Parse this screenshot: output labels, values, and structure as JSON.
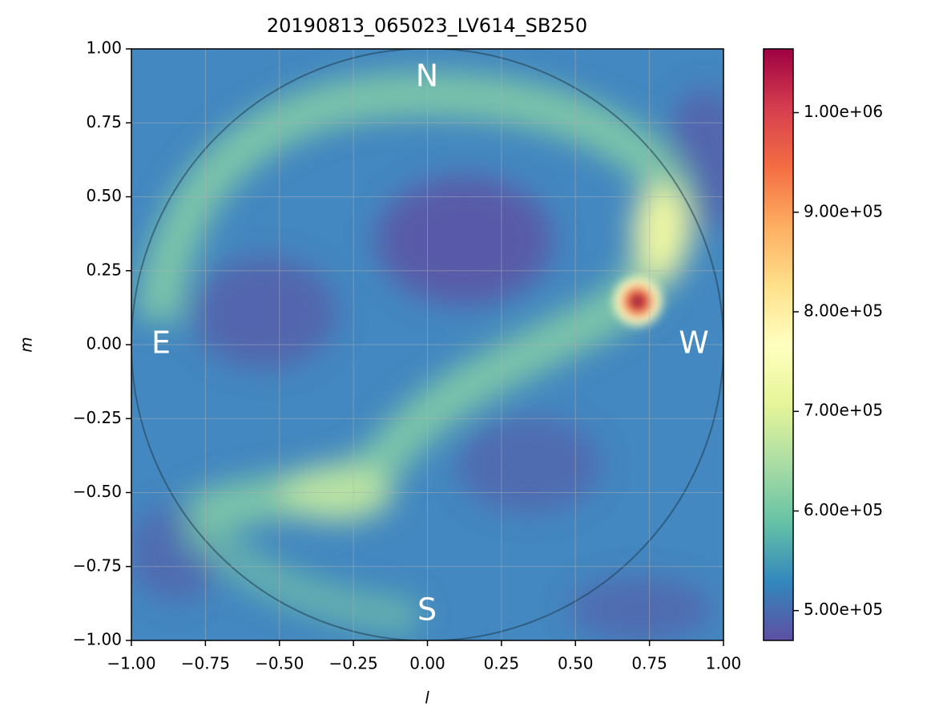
{
  "chart_data": {
    "type": "heatmap",
    "title": "20190813_065023_LV614_SB250",
    "x_label": "l",
    "y_label": "m",
    "xlim": [
      -1,
      1
    ],
    "ylim": [
      -1,
      1
    ],
    "xticks": [
      {
        "value": -1,
        "label": "−1.00"
      },
      {
        "value": -0.75,
        "label": "−0.75"
      },
      {
        "value": -0.5,
        "label": "−0.50"
      },
      {
        "value": -0.25,
        "label": "−0.25"
      },
      {
        "value": 0,
        "label": "0.00"
      },
      {
        "value": 0.25,
        "label": "0.25"
      },
      {
        "value": 0.5,
        "label": "0.50"
      },
      {
        "value": 0.75,
        "label": "0.75"
      },
      {
        "value": 1,
        "label": "1.00"
      }
    ],
    "yticks": [
      {
        "value": -1,
        "label": "−1.00"
      },
      {
        "value": -0.75,
        "label": "−0.75"
      },
      {
        "value": -0.5,
        "label": "−0.50"
      },
      {
        "value": -0.25,
        "label": "−0.25"
      },
      {
        "value": 0,
        "label": "0.00"
      },
      {
        "value": 0.25,
        "label": "0.25"
      },
      {
        "value": 0.5,
        "label": "0.50"
      },
      {
        "value": 0.75,
        "label": "0.75"
      },
      {
        "value": 1,
        "label": "1.00"
      }
    ],
    "grid": true,
    "annotations": [
      "N",
      "E",
      "S",
      "W"
    ],
    "colorbar": {
      "lim": [
        470000,
        1064000
      ],
      "ticks": [
        {
          "value": 500000,
          "label": "5.00e+05"
        },
        {
          "value": 600000,
          "label": "6.00e+05"
        },
        {
          "value": 700000,
          "label": "7.00e+05"
        },
        {
          "value": 800000,
          "label": "8.00e+05"
        },
        {
          "value": 900000,
          "label": "9.00e+05"
        },
        {
          "value": 1000000,
          "label": "1.00e+06"
        }
      ],
      "colors": [
        "#5e4fa2",
        "#3288bd",
        "#66c2a5",
        "#abdda4",
        "#e6f598",
        "#ffffbf",
        "#fee08b",
        "#fdae61",
        "#f46d43",
        "#d53e4f",
        "#9e0142"
      ]
    }
  }
}
